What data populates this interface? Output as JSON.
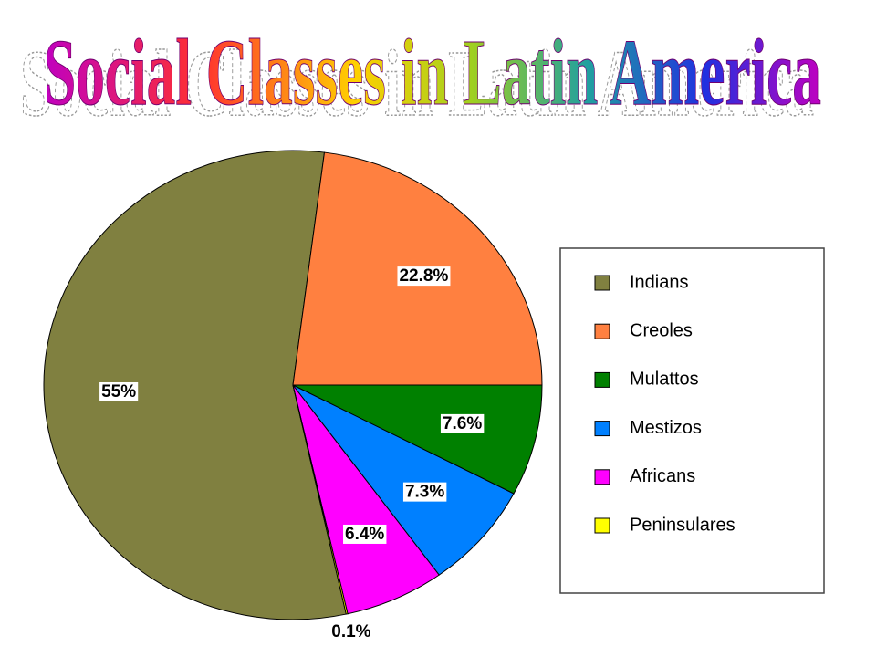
{
  "chart_data": {
    "type": "pie",
    "title": "Social Classes in Latin America",
    "categories": [
      "Indians",
      "Creoles",
      "Mulattos",
      "Mestizos",
      "Africans",
      "Peninsulares"
    ],
    "values": [
      55,
      22.8,
      7.6,
      7.3,
      6.4,
      0.1
    ],
    "value_labels": [
      "55%",
      "22.8%",
      "7.6%",
      "7.3%",
      "6.4%",
      "0.1%"
    ],
    "colors": [
      "#808040",
      "#ff8040",
      "#008000",
      "#0080ff",
      "#ff00ff",
      "#ffff00"
    ],
    "legend": "right"
  }
}
